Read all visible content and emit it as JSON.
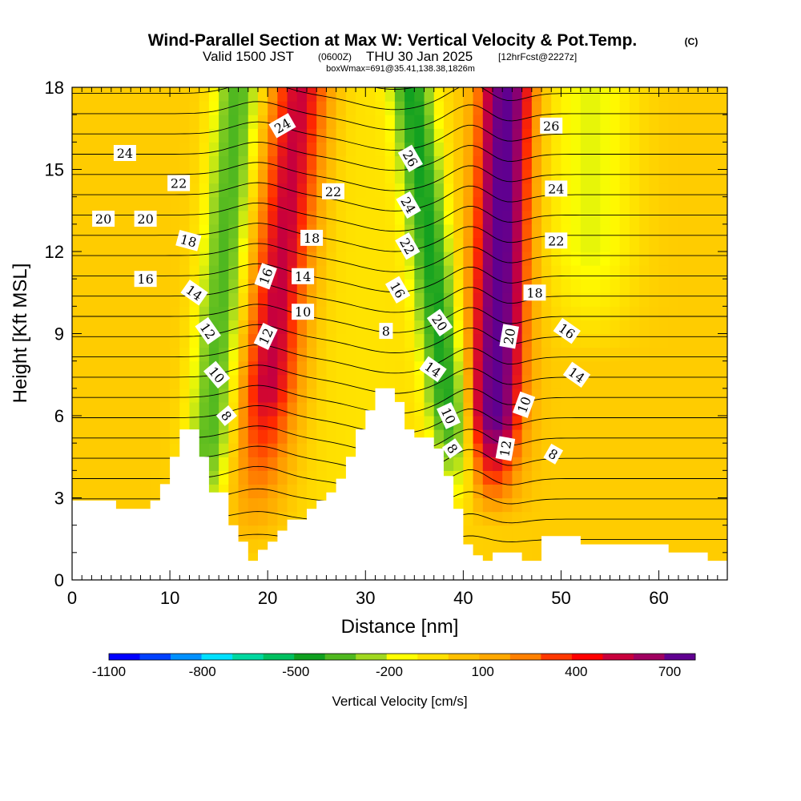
{
  "chart_data": {
    "type": "heatmap",
    "title": "Wind-Parallel Section at Max W: Vertical Velocity & Pot.Temp.",
    "title_mark": "(C)",
    "subtitle_valid": "Valid 1500 JST",
    "subtitle_z": "(0600Z)",
    "subtitle_date": "THU 30 Jan 2025",
    "subtitle_fcst": "[12hrFcst@2227z]",
    "subtitle_box": "boxWmax=691@35.41,138.38,1826m",
    "xlabel": "Distance [nm]",
    "ylabel": "Height [Kft MSL]",
    "xlim": [
      0,
      67
    ],
    "ylim": [
      0,
      18
    ],
    "x_ticks": [
      "0",
      "10",
      "20",
      "30",
      "40",
      "50",
      "60"
    ],
    "x_tick_values": [
      0,
      10,
      20,
      30,
      40,
      50,
      60
    ],
    "y_ticks": [
      "0",
      "3",
      "6",
      "9",
      "12",
      "15",
      "18"
    ],
    "y_tick_values": [
      0,
      3,
      6,
      9,
      12,
      15,
      18
    ],
    "colorbar": {
      "label": "Vertical Velocity [cm/s]",
      "labels": [
        "-1100",
        "-800",
        "-500",
        "-200",
        "100",
        "400",
        "700"
      ],
      "colors": [
        "#0000ff",
        "#0040ff",
        "#0090ff",
        "#00e0ff",
        "#00d8a0",
        "#00c060",
        "#10a020",
        "#50b820",
        "#a0d820",
        "#ffff00",
        "#ffe000",
        "#ffc000",
        "#ffa800",
        "#ff8000",
        "#ff3800",
        "#ff0000",
        "#c8003c",
        "#a00060",
        "#600090"
      ]
    },
    "terrain": [
      [
        0,
        2.9
      ],
      [
        4.5,
        2.9
      ],
      [
        4.5,
        2.6
      ],
      [
        8,
        2.6
      ],
      [
        8,
        2.9
      ],
      [
        9,
        2.9
      ],
      [
        9,
        3.5
      ],
      [
        10,
        3.5
      ],
      [
        10,
        4.5
      ],
      [
        11,
        4.5
      ],
      [
        11,
        5.5
      ],
      [
        13,
        5.5
      ],
      [
        13,
        4.5
      ],
      [
        14,
        4.5
      ],
      [
        14,
        3.2
      ],
      [
        16,
        3.2
      ],
      [
        16,
        2.0
      ],
      [
        17,
        2.0
      ],
      [
        17,
        1.4
      ],
      [
        18,
        1.4
      ],
      [
        18,
        0.7
      ],
      [
        19,
        0.7
      ],
      [
        19,
        1.1
      ],
      [
        20,
        1.1
      ],
      [
        20,
        1.4
      ],
      [
        21,
        1.4
      ],
      [
        21,
        1.8
      ],
      [
        22,
        1.8
      ],
      [
        22,
        2.2
      ],
      [
        24,
        2.2
      ],
      [
        24,
        2.6
      ],
      [
        25,
        2.6
      ],
      [
        25,
        2.9
      ],
      [
        26,
        2.9
      ],
      [
        26,
        3.2
      ],
      [
        27,
        3.2
      ],
      [
        27,
        3.7
      ],
      [
        28,
        3.7
      ],
      [
        28,
        4.5
      ],
      [
        29,
        4.5
      ],
      [
        29,
        5.5
      ],
      [
        30,
        5.5
      ],
      [
        30,
        6.2
      ],
      [
        31,
        6.2
      ],
      [
        31,
        7.0
      ],
      [
        33,
        7.0
      ],
      [
        33,
        6.5
      ],
      [
        34,
        6.5
      ],
      [
        34,
        5.5
      ],
      [
        35,
        5.5
      ],
      [
        35,
        5.2
      ],
      [
        37,
        5.2
      ],
      [
        37,
        4.8
      ],
      [
        38,
        4.8
      ],
      [
        38,
        3.8
      ],
      [
        39,
        3.8
      ],
      [
        39,
        2.6
      ],
      [
        40,
        2.6
      ],
      [
        40,
        1.3
      ],
      [
        41,
        1.3
      ],
      [
        41,
        0.9
      ],
      [
        42,
        0.9
      ],
      [
        42,
        0.7
      ],
      [
        43,
        0.7
      ],
      [
        43,
        1.0
      ],
      [
        46,
        1.0
      ],
      [
        46,
        0.7
      ],
      [
        48,
        0.7
      ],
      [
        48,
        1.6
      ],
      [
        52,
        1.6
      ],
      [
        52,
        1.3
      ],
      [
        61,
        1.3
      ],
      [
        61,
        1.0
      ],
      [
        65,
        1.0
      ],
      [
        65,
        0.7
      ],
      [
        67,
        0.7
      ]
    ],
    "isentrope_labels": [
      "24",
      "24",
      "22",
      "22",
      "20",
      "20",
      "18",
      "18",
      "16",
      "16",
      "14",
      "14",
      "12",
      "12",
      "10",
      "10",
      "8",
      "8",
      "26",
      "24",
      "22",
      "16",
      "20",
      "14",
      "10",
      "8",
      "20",
      "10",
      "12",
      "18",
      "16",
      "14",
      "8",
      "26",
      "24",
      "22"
    ]
  }
}
